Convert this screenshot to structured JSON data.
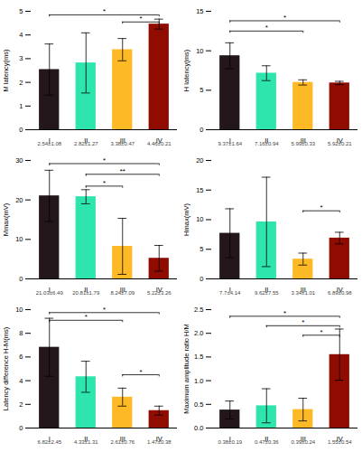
{
  "chart_data": [
    {
      "type": "bar",
      "ylabel": "M latency(ms)",
      "categories": [
        "I",
        "II",
        "III",
        "IV"
      ],
      "values": [
        2.54,
        2.82,
        3.38,
        4.46
      ],
      "errors": [
        1.08,
        1.27,
        0.47,
        0.21
      ],
      "ylim": [
        0,
        5
      ],
      "yticks": [
        0,
        1,
        2,
        3,
        4,
        5
      ],
      "annotations": [
        {
          "category": "I",
          "text": "2.54±1.08"
        },
        {
          "category": "II",
          "text": "2.82±1.27"
        },
        {
          "category": "III",
          "text": "3.38±0.47"
        },
        {
          "category": "IV",
          "text": "4.46±0.21"
        }
      ],
      "brackets": [
        {
          "from": "I",
          "to": "IV",
          "y": 4.85,
          "text": "*"
        },
        {
          "from": "III",
          "to": "IV",
          "y": 4.55,
          "text": "*"
        }
      ]
    },
    {
      "type": "bar",
      "ylabel": "H latency(ms)",
      "categories": [
        "I",
        "II",
        "III",
        "IV"
      ],
      "values": [
        9.37,
        7.16,
        5.99,
        5.92
      ],
      "errors": [
        1.64,
        0.94,
        0.33,
        0.21
      ],
      "ylim": [
        0,
        15
      ],
      "yticks": [
        0,
        5,
        10,
        15
      ],
      "annotations": [
        {
          "category": "I",
          "text": "9.37±1.64"
        },
        {
          "category": "II",
          "text": "7.16±0.94"
        },
        {
          "category": "III",
          "text": "5.99±0.33"
        },
        {
          "category": "IV",
          "text": "5.92±0.21"
        }
      ],
      "brackets": [
        {
          "from": "I",
          "to": "III",
          "y": 12.5,
          "text": "*"
        },
        {
          "from": "I",
          "to": "IV",
          "y": 13.8,
          "text": "*"
        }
      ]
    },
    {
      "type": "bar",
      "ylabel": "Mmax(mV)",
      "categories": [
        "I",
        "II",
        "III",
        "IV"
      ],
      "values": [
        21.03,
        20.81,
        8.24,
        5.22
      ],
      "errors": [
        6.49,
        1.79,
        7.09,
        3.26
      ],
      "ylim": [
        0,
        30
      ],
      "yticks": [
        0,
        10,
        20,
        30
      ],
      "annotations": [
        {
          "category": "I",
          "text": "21.03±6.49"
        },
        {
          "category": "II",
          "text": "20.81±1.79"
        },
        {
          "category": "III",
          "text": "8.24±7.09"
        },
        {
          "category": "IV",
          "text": "5.22±3.26"
        }
      ],
      "brackets": [
        {
          "from": "II",
          "to": "III",
          "y": 23.5,
          "text": "*"
        },
        {
          "from": "II",
          "to": "IV",
          "y": 26.5,
          "text": "**"
        },
        {
          "from": "I",
          "to": "IV",
          "y": 29.2,
          "text": "*"
        }
      ]
    },
    {
      "type": "bar",
      "ylabel": "Hmax(mV)",
      "categories": [
        "I",
        "II",
        "III",
        "IV"
      ],
      "values": [
        7.7,
        9.62,
        3.34,
        6.89
      ],
      "errors": [
        4.14,
        7.55,
        1.01,
        0.98
      ],
      "ylim": [
        0,
        20
      ],
      "yticks": [
        0,
        5,
        10,
        15,
        20
      ],
      "annotations": [
        {
          "category": "I",
          "text": "7.7±4.14"
        },
        {
          "category": "II",
          "text": "9.62±7.55"
        },
        {
          "category": "III",
          "text": "3.34±1.01"
        },
        {
          "category": "IV",
          "text": "6.89±0.98"
        }
      ],
      "brackets": [
        {
          "from": "III",
          "to": "IV",
          "y": 11.5,
          "text": "*"
        }
      ]
    },
    {
      "type": "bar",
      "ylabel": "Latency difference H-M(ms)",
      "categories": [
        "I",
        "II",
        "III",
        "IV"
      ],
      "values": [
        6.82,
        4.33,
        2.61,
        1.47
      ],
      "errors": [
        2.45,
        1.31,
        0.76,
        0.38
      ],
      "ylim": [
        0,
        10
      ],
      "yticks": [
        0,
        2,
        4,
        6,
        8,
        10
      ],
      "annotations": [
        {
          "category": "I",
          "text": "6.82±2.45"
        },
        {
          "category": "II",
          "text": "4.33±1.31"
        },
        {
          "category": "III",
          "text": "2.61±0.76"
        },
        {
          "category": "IV",
          "text": "1.47±0.38"
        }
      ],
      "brackets": [
        {
          "from": "I",
          "to": "III",
          "y": 9.1,
          "text": "*"
        },
        {
          "from": "I",
          "to": "IV",
          "y": 9.75,
          "text": "*"
        },
        {
          "from": "III",
          "to": "IV",
          "y": 4.5,
          "text": "*"
        }
      ]
    },
    {
      "type": "bar",
      "ylabel": "Maximum amplitude ratio H/M",
      "categories": [
        "I",
        "II",
        "III",
        "IV"
      ],
      "values": [
        0.38,
        0.47,
        0.39,
        1.55
      ],
      "errors": [
        0.19,
        0.36,
        0.24,
        0.54
      ],
      "ylim": [
        0,
        2.5
      ],
      "yticks": [
        {
          "value": 0,
          "label": "0.0"
        },
        0.5,
        {
          "value": 1,
          "label": "1.0"
        },
        1.5,
        {
          "value": 2,
          "label": "2.0"
        },
        2.5
      ],
      "annotations": [
        {
          "category": "I",
          "text": "0.38±0.19"
        },
        {
          "category": "II",
          "text": "0.47±0.36"
        },
        {
          "category": "III",
          "text": "0.39±0.24"
        },
        {
          "category": "IV",
          "text": "1.55±0.54"
        }
      ],
      "brackets": [
        {
          "from": "I",
          "to": "IV",
          "y": 2.36,
          "text": "*"
        },
        {
          "from": "II",
          "to": "IV",
          "y": 2.16,
          "text": "*"
        },
        {
          "from": "III",
          "to": "IV",
          "y": 1.96,
          "text": "*"
        }
      ]
    }
  ]
}
